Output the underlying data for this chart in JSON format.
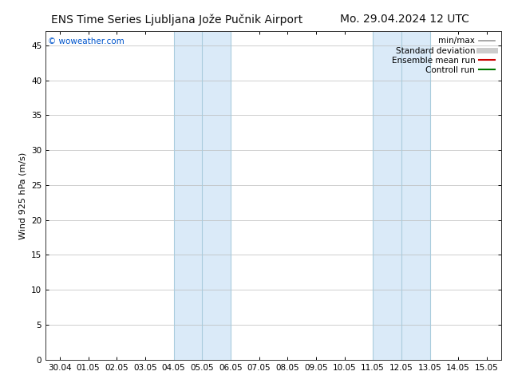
{
  "title_left": "ENS Time Series Ljubljana Jože Pučnik Airport",
  "title_right": "Mo. 29.04.2024 12 UTC",
  "ylabel": "Wind 925 hPa (m/s)",
  "watermark": "© woweather.com",
  "watermark_color": "#0055cc",
  "background_color": "#ffffff",
  "plot_bg_color": "#ffffff",
  "grid_color": "#bbbbbb",
  "x_tick_labels": [
    "30.04",
    "01.05",
    "02.05",
    "03.05",
    "04.05",
    "05.05",
    "06.05",
    "07.05",
    "08.05",
    "09.05",
    "10.05",
    "11.05",
    "12.05",
    "13.05",
    "14.05",
    "15.05"
  ],
  "x_tick_positions": [
    0,
    1,
    2,
    3,
    4,
    5,
    6,
    7,
    8,
    9,
    10,
    11,
    12,
    13,
    14,
    15
  ],
  "ylim": [
    0,
    47
  ],
  "yticks": [
    0,
    5,
    10,
    15,
    20,
    25,
    30,
    35,
    40,
    45
  ],
  "shaded_regions": [
    {
      "xstart": 4.0,
      "xend": 6.0,
      "color": "#daeaf8"
    },
    {
      "xstart": 11.0,
      "xend": 13.0,
      "color": "#daeaf8"
    }
  ],
  "shade_lines_x": [
    4.0,
    5.0,
    6.0,
    11.0,
    12.0,
    13.0
  ],
  "shade_line_color": "#aaccdd",
  "legend_entries": [
    {
      "label": "min/max",
      "color": "#999999",
      "lw": 1.2,
      "style": "-"
    },
    {
      "label": "Standard deviation",
      "color": "#cccccc",
      "lw": 5,
      "style": "-"
    },
    {
      "label": "Ensemble mean run",
      "color": "#cc0000",
      "lw": 1.5,
      "style": "-"
    },
    {
      "label": "Controll run",
      "color": "#007700",
      "lw": 1.5,
      "style": "-"
    }
  ],
  "title_fontsize": 10,
  "ylabel_fontsize": 8,
  "tick_fontsize": 7.5,
  "legend_fontsize": 7.5,
  "watermark_fontsize": 7.5
}
